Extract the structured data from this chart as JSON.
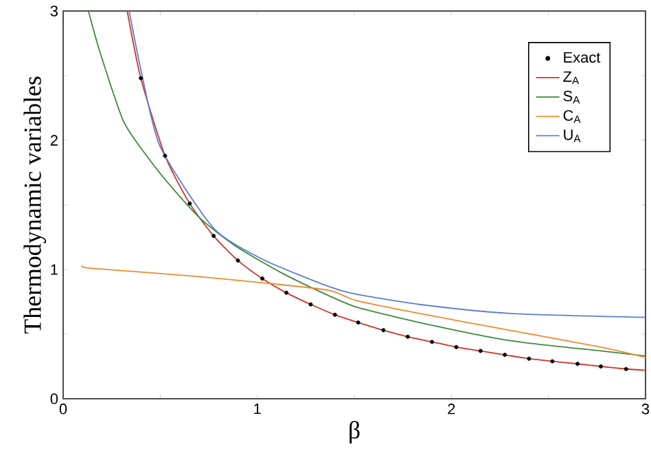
{
  "chart_data": {
    "type": "line",
    "xlabel": "β",
    "ylabel": "Thermodynamic variables",
    "xlim": [
      0,
      3
    ],
    "ylim": [
      0,
      3
    ],
    "xticks": [
      0,
      {
        "value": 0.5,
        "label": null
      },
      1,
      {
        "value": 1.5,
        "label": null
      },
      2,
      {
        "value": 2.5,
        "label": null
      },
      3
    ],
    "yticks": [
      0,
      {
        "value": 0.5,
        "label": null
      },
      1,
      {
        "value": 1.5,
        "label": null
      },
      2,
      {
        "value": 2.5,
        "label": null
      },
      3
    ],
    "legend": "top right",
    "grid": false,
    "series": [
      {
        "name": "Exact",
        "type": "scatter",
        "color": "#000000",
        "x": [
          0.4,
          0.525,
          0.652,
          0.775,
          0.9,
          1.026,
          1.15,
          1.275,
          1.4,
          1.52,
          1.65,
          1.775,
          1.9,
          2.025,
          2.15,
          2.275,
          2.4,
          2.52,
          2.65,
          2.77,
          2.9
        ],
        "values": [
          2.48,
          1.88,
          1.51,
          1.26,
          1.07,
          0.93,
          0.82,
          0.73,
          0.65,
          0.59,
          0.53,
          0.48,
          0.44,
          0.4,
          0.37,
          0.34,
          0.31,
          0.29,
          0.27,
          0.25,
          0.23
        ]
      },
      {
        "name": "Z$_{A}$",
        "color": "#d0312d",
        "x": [
          0.33,
          0.4,
          0.525,
          0.652,
          0.775,
          0.9,
          1.026,
          1.15,
          1.275,
          1.4,
          1.52,
          1.65,
          1.775,
          1.9,
          2.025,
          2.15,
          2.275,
          2.4,
          2.52,
          2.65,
          2.77,
          2.9,
          3.0
        ],
        "values": [
          3.0,
          2.48,
          1.88,
          1.51,
          1.26,
          1.07,
          0.93,
          0.82,
          0.73,
          0.65,
          0.59,
          0.53,
          0.48,
          0.44,
          0.4,
          0.37,
          0.34,
          0.31,
          0.29,
          0.27,
          0.25,
          0.23,
          0.22
        ]
      },
      {
        "name": "S$_{A}$",
        "color": "#3a8a3a",
        "x": [
          0.13,
          0.19,
          0.31,
          0.43,
          0.54,
          0.71,
          0.89,
          1.13,
          1.365,
          1.51,
          1.835,
          2.3,
          2.77,
          3.0
        ],
        "values": [
          3.0,
          2.68,
          2.15,
          1.88,
          1.67,
          1.39,
          1.18,
          0.97,
          0.8,
          0.71,
          0.59,
          0.45,
          0.37,
          0.33
        ]
      },
      {
        "name": "C$_{A}$",
        "color": "#f08a30",
        "x": [
          0.1,
          0.14,
          0.66,
          1.01,
          1.365,
          1.51,
          1.835,
          2.3,
          2.77,
          3.0
        ],
        "values": [
          1.03,
          1.01,
          0.95,
          0.9,
          0.84,
          0.76,
          0.66,
          0.53,
          0.4,
          0.32
        ]
      },
      {
        "name": "U$_{A}$",
        "color": "#5a7fd0",
        "x": [
          0.34,
          0.4,
          0.5,
          0.775,
          1.026,
          1.365,
          1.506,
          1.835,
          2.3,
          3.0
        ],
        "values": [
          3.0,
          2.55,
          1.95,
          1.32,
          1.08,
          0.87,
          0.81,
          0.73,
          0.66,
          0.63
        ]
      }
    ]
  }
}
